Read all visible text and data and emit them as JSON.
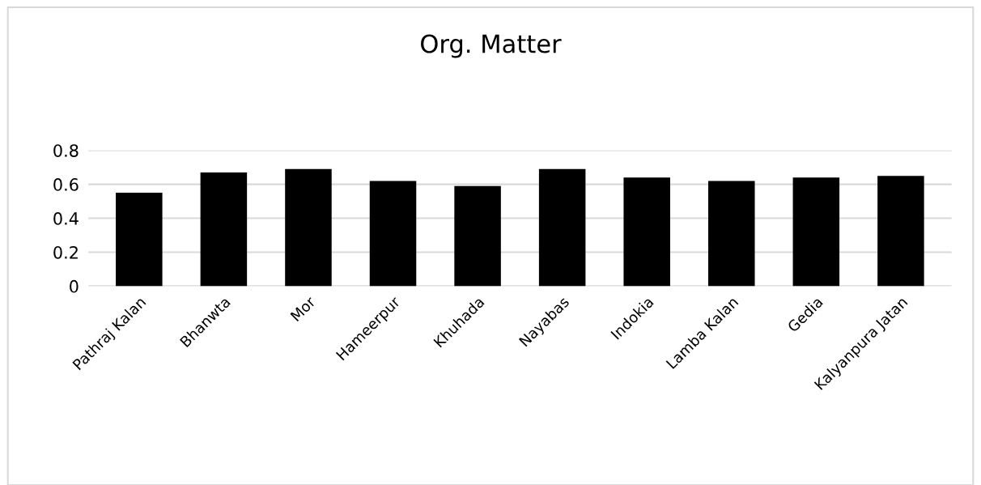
{
  "chart_data": {
    "type": "bar",
    "title": "Org. Matter",
    "categories": [
      "Pathraj Kalan",
      "Bhanwta",
      "Mor",
      "Hameerpur",
      "Khuhada",
      "Nayabas",
      "Indokia",
      "Lamba Kalan",
      "Gedia",
      "Kalyanpura Jatan"
    ],
    "values": [
      0.55,
      0.67,
      0.69,
      0.62,
      0.59,
      0.69,
      0.64,
      0.62,
      0.64,
      0.65
    ],
    "color": "#000000",
    "ylim": [
      0,
      0.8
    ],
    "yticks": [
      0,
      0.2,
      0.4,
      0.6,
      0.8
    ],
    "grid": "y"
  }
}
